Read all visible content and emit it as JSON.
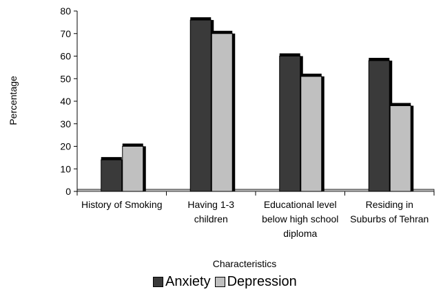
{
  "chart_data": {
    "type": "bar",
    "title": "",
    "xlabel": "Characteristics",
    "ylabel": "Percentage",
    "ylim": [
      0,
      80
    ],
    "yticks": [
      "0",
      "10",
      "20",
      "30",
      "40",
      "50",
      "60",
      "70",
      "80"
    ],
    "categories": [
      [
        "History of Smoking"
      ],
      [
        "Having 1-3",
        "children"
      ],
      [
        "Educational level",
        "below high school",
        "diploma"
      ],
      [
        "Residing in",
        "Suburbs of Tehran"
      ]
    ],
    "series": [
      {
        "name": "Anxiety",
        "color": "#3a3a3a",
        "values": [
          14,
          76,
          60,
          58
        ]
      },
      {
        "name": "Depression",
        "color": "#c0c0c0",
        "values": [
          20,
          70,
          51,
          38
        ]
      }
    ],
    "grid": false,
    "legend_position": "bottom"
  }
}
